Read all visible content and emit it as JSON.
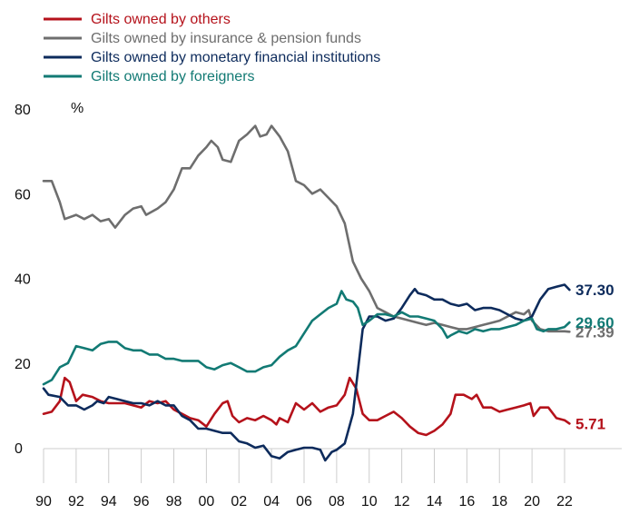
{
  "chart_data": {
    "type": "line",
    "ylabel": "%",
    "ylim": [
      -5,
      80
    ],
    "xlim": [
      1990,
      2022.3
    ],
    "grid": false,
    "legend_placement": "top-left",
    "x_ticks": [
      {
        "value": 1990,
        "label": "90"
      },
      {
        "value": 1992,
        "label": "92"
      },
      {
        "value": 1994,
        "label": "94"
      },
      {
        "value": 1996,
        "label": "96"
      },
      {
        "value": 1998,
        "label": "98"
      },
      {
        "value": 2000,
        "label": "00"
      },
      {
        "value": 2002,
        "label": "02"
      },
      {
        "value": 2004,
        "label": "04"
      },
      {
        "value": 2006,
        "label": "06"
      },
      {
        "value": 2008,
        "label": "08"
      },
      {
        "value": 2010,
        "label": "10"
      },
      {
        "value": 2012,
        "label": "12"
      },
      {
        "value": 2014,
        "label": "14"
      },
      {
        "value": 2016,
        "label": "16"
      },
      {
        "value": 2018,
        "label": "18"
      },
      {
        "value": 2020,
        "label": "20"
      },
      {
        "value": 2022,
        "label": "22"
      }
    ],
    "y_ticks": [
      {
        "value": 0,
        "label": "0"
      },
      {
        "value": 20,
        "label": "20"
      },
      {
        "value": 40,
        "label": "40"
      },
      {
        "value": 60,
        "label": "60"
      },
      {
        "value": 80,
        "label": "80"
      }
    ],
    "series": [
      {
        "name": "Gilts owned by others",
        "color": "#b5121b",
        "end_label": "5.71",
        "points": [
          [
            1990,
            8
          ],
          [
            1990.5,
            8.5
          ],
          [
            1991,
            11
          ],
          [
            1991.3,
            16.5
          ],
          [
            1991.6,
            15.5
          ],
          [
            1992,
            11
          ],
          [
            1992.4,
            12.5
          ],
          [
            1993,
            12
          ],
          [
            1993.5,
            11
          ],
          [
            1994,
            10.5
          ],
          [
            1995,
            10.5
          ],
          [
            1995.5,
            10
          ],
          [
            1996,
            9.5
          ],
          [
            1996.5,
            11
          ],
          [
            1997,
            10.5
          ],
          [
            1997.5,
            11
          ],
          [
            1998,
            9
          ],
          [
            1998.5,
            8
          ],
          [
            1999,
            7
          ],
          [
            1999.5,
            6.5
          ],
          [
            2000,
            5
          ],
          [
            2000.5,
            8
          ],
          [
            2001,
            10.5
          ],
          [
            2001.3,
            11
          ],
          [
            2001.6,
            7.5
          ],
          [
            2002,
            6
          ],
          [
            2002.5,
            7
          ],
          [
            2003,
            6.5
          ],
          [
            2003.5,
            7.5
          ],
          [
            2004,
            6.5
          ],
          [
            2004.3,
            5.5
          ],
          [
            2004.5,
            7
          ],
          [
            2005,
            6
          ],
          [
            2005.5,
            10.5
          ],
          [
            2006,
            9
          ],
          [
            2006.5,
            10.5
          ],
          [
            2007,
            8.5
          ],
          [
            2007.5,
            9.5
          ],
          [
            2008,
            10
          ],
          [
            2008.5,
            12.5
          ],
          [
            2008.8,
            16.5
          ],
          [
            2009.2,
            14
          ],
          [
            2009.6,
            8
          ],
          [
            2010,
            6.5
          ],
          [
            2010.5,
            6.5
          ],
          [
            2011,
            7.5
          ],
          [
            2011.5,
            8.5
          ],
          [
            2012,
            7
          ],
          [
            2012.5,
            5
          ],
          [
            2013,
            3.5
          ],
          [
            2013.5,
            3
          ],
          [
            2014,
            4
          ],
          [
            2014.5,
            5.5
          ],
          [
            2015,
            8
          ],
          [
            2015.3,
            12.5
          ],
          [
            2015.8,
            12.5
          ],
          [
            2016.3,
            11.5
          ],
          [
            2016.6,
            12.5
          ],
          [
            2017,
            9.5
          ],
          [
            2017.5,
            9.5
          ],
          [
            2018,
            8.5
          ],
          [
            2018.5,
            9
          ],
          [
            2019,
            9.5
          ],
          [
            2019.5,
            10
          ],
          [
            2019.9,
            10.5
          ],
          [
            2020.1,
            7.5
          ],
          [
            2020.5,
            9.5
          ],
          [
            2021,
            9.5
          ],
          [
            2021.5,
            7
          ],
          [
            2022,
            6.5
          ],
          [
            2022.3,
            5.71
          ]
        ]
      },
      {
        "name": "Gilts owned by insurance & pension funds",
        "color": "#6e6e6e",
        "end_label": "27.39",
        "points": [
          [
            1990,
            63
          ],
          [
            1990.5,
            63
          ],
          [
            1991,
            58
          ],
          [
            1991.3,
            54
          ],
          [
            1992,
            55
          ],
          [
            1992.5,
            54
          ],
          [
            1993,
            55
          ],
          [
            1993.5,
            53.5
          ],
          [
            1994,
            54
          ],
          [
            1994.4,
            52
          ],
          [
            1995,
            55
          ],
          [
            1995.5,
            56.5
          ],
          [
            1996,
            57
          ],
          [
            1996.3,
            55
          ],
          [
            1997,
            56.5
          ],
          [
            1997.5,
            58
          ],
          [
            1998,
            61
          ],
          [
            1998.5,
            66
          ],
          [
            1999,
            66
          ],
          [
            1999.5,
            69
          ],
          [
            2000,
            71
          ],
          [
            2000.3,
            72.5
          ],
          [
            2000.7,
            71
          ],
          [
            2001,
            68
          ],
          [
            2001.5,
            67.5
          ],
          [
            2002,
            72.5
          ],
          [
            2002.5,
            74
          ],
          [
            2003,
            76
          ],
          [
            2003.3,
            73.5
          ],
          [
            2003.7,
            74
          ],
          [
            2004,
            76
          ],
          [
            2004.5,
            73.5
          ],
          [
            2005,
            70
          ],
          [
            2005.5,
            63
          ],
          [
            2006,
            62
          ],
          [
            2006.5,
            60
          ],
          [
            2007,
            61
          ],
          [
            2007.5,
            59
          ],
          [
            2008,
            57
          ],
          [
            2008.5,
            53
          ],
          [
            2009,
            44
          ],
          [
            2009.5,
            40
          ],
          [
            2010,
            37
          ],
          [
            2010.5,
            33
          ],
          [
            2011,
            32
          ],
          [
            2011.5,
            31
          ],
          [
            2012,
            30.5
          ],
          [
            2013,
            29.5
          ],
          [
            2013.5,
            29
          ],
          [
            2014,
            29.5
          ],
          [
            2014.5,
            29
          ],
          [
            2015,
            28.5
          ],
          [
            2015.5,
            28
          ],
          [
            2016,
            28
          ],
          [
            2016.5,
            28.5
          ],
          [
            2017,
            29
          ],
          [
            2017.5,
            29.5
          ],
          [
            2018,
            30
          ],
          [
            2018.5,
            31
          ],
          [
            2019,
            32
          ],
          [
            2019.5,
            31.5
          ],
          [
            2019.8,
            32.5
          ],
          [
            2020,
            30
          ],
          [
            2020.5,
            28
          ],
          [
            2021,
            27.5
          ],
          [
            2021.5,
            27.5
          ],
          [
            2022,
            27.5
          ],
          [
            2022.3,
            27.39
          ]
        ]
      },
      {
        "name": "Gilts owned by monetary financial institutions",
        "color": "#0d2b5c",
        "end_label": "37.30",
        "points": [
          [
            1990,
            14
          ],
          [
            1990.3,
            12.5
          ],
          [
            1991,
            12
          ],
          [
            1991.5,
            10
          ],
          [
            1992,
            10
          ],
          [
            1992.5,
            9
          ],
          [
            1993,
            10
          ],
          [
            1993.3,
            11
          ],
          [
            1993.7,
            10.5
          ],
          [
            1994,
            12
          ],
          [
            1994.5,
            11.5
          ],
          [
            1995,
            11
          ],
          [
            1995.5,
            10.5
          ],
          [
            1996,
            10.5
          ],
          [
            1996.5,
            10
          ],
          [
            1997,
            11
          ],
          [
            1997.5,
            10
          ],
          [
            1998,
            10
          ],
          [
            1998.5,
            7.5
          ],
          [
            1999,
            6.5
          ],
          [
            1999.5,
            4.5
          ],
          [
            2000,
            4.5
          ],
          [
            2000.5,
            4
          ],
          [
            2001,
            3.5
          ],
          [
            2001.5,
            3.5
          ],
          [
            2002,
            1.5
          ],
          [
            2002.5,
            1
          ],
          [
            2003,
            0
          ],
          [
            2003.5,
            0.5
          ],
          [
            2004,
            -2
          ],
          [
            2004.5,
            -2.5
          ],
          [
            2005,
            -1
          ],
          [
            2005.5,
            -0.5
          ],
          [
            2006,
            0
          ],
          [
            2006.5,
            0
          ],
          [
            2007,
            -0.5
          ],
          [
            2007.3,
            -3
          ],
          [
            2007.7,
            -1
          ],
          [
            2008,
            -0.5
          ],
          [
            2008.5,
            1
          ],
          [
            2009,
            8
          ],
          [
            2009.3,
            18
          ],
          [
            2009.6,
            28
          ],
          [
            2010,
            31
          ],
          [
            2010.5,
            31
          ],
          [
            2011,
            30
          ],
          [
            2011.5,
            30.5
          ],
          [
            2012,
            33
          ],
          [
            2012.5,
            36
          ],
          [
            2012.8,
            37.5
          ],
          [
            2013,
            36.5
          ],
          [
            2013.5,
            36
          ],
          [
            2014,
            35
          ],
          [
            2014.5,
            35
          ],
          [
            2015,
            34
          ],
          [
            2015.5,
            33.5
          ],
          [
            2016,
            34
          ],
          [
            2016.5,
            32.5
          ],
          [
            2017,
            33
          ],
          [
            2017.5,
            33
          ],
          [
            2018,
            32.5
          ],
          [
            2018.5,
            31.5
          ],
          [
            2019,
            30.5
          ],
          [
            2019.5,
            30
          ],
          [
            2020,
            31
          ],
          [
            2020.5,
            35
          ],
          [
            2021,
            37.5
          ],
          [
            2021.5,
            38
          ],
          [
            2022,
            38.5
          ],
          [
            2022.3,
            37.3
          ]
        ]
      },
      {
        "name": "Gilts owned by foreigners",
        "color": "#127a74",
        "end_label": "29.60",
        "points": [
          [
            1990,
            15
          ],
          [
            1990.5,
            16
          ],
          [
            1991,
            19
          ],
          [
            1991.5,
            20
          ],
          [
            1992,
            24
          ],
          [
            1992.5,
            23.5
          ],
          [
            1993,
            23
          ],
          [
            1993.5,
            24.5
          ],
          [
            1994,
            25
          ],
          [
            1994.5,
            25
          ],
          [
            1995,
            23.5
          ],
          [
            1995.5,
            23
          ],
          [
            1996,
            23
          ],
          [
            1996.5,
            22
          ],
          [
            1997,
            22
          ],
          [
            1997.5,
            21
          ],
          [
            1998,
            21
          ],
          [
            1998.5,
            20.5
          ],
          [
            1999,
            20.5
          ],
          [
            1999.5,
            20.5
          ],
          [
            2000,
            19
          ],
          [
            2000.5,
            18.5
          ],
          [
            2001,
            19.5
          ],
          [
            2001.5,
            20
          ],
          [
            2002,
            19
          ],
          [
            2002.5,
            18
          ],
          [
            2003,
            18
          ],
          [
            2003.5,
            19
          ],
          [
            2004,
            19.5
          ],
          [
            2004.5,
            21.5
          ],
          [
            2005,
            23
          ],
          [
            2005.5,
            24
          ],
          [
            2006,
            27
          ],
          [
            2006.5,
            30
          ],
          [
            2007,
            31.5
          ],
          [
            2007.5,
            33
          ],
          [
            2008,
            34
          ],
          [
            2008.3,
            37
          ],
          [
            2008.6,
            35
          ],
          [
            2009,
            34.5
          ],
          [
            2009.3,
            33
          ],
          [
            2009.6,
            29
          ],
          [
            2010,
            30
          ],
          [
            2010.5,
            31.5
          ],
          [
            2011,
            31.5
          ],
          [
            2011.5,
            31
          ],
          [
            2012,
            32
          ],
          [
            2012.5,
            31
          ],
          [
            2013,
            31
          ],
          [
            2013.5,
            30.5
          ],
          [
            2014,
            30
          ],
          [
            2014.5,
            28
          ],
          [
            2014.8,
            26
          ],
          [
            2015,
            26.5
          ],
          [
            2015.5,
            27.5
          ],
          [
            2016,
            27
          ],
          [
            2016.5,
            28
          ],
          [
            2017,
            27.5
          ],
          [
            2017.5,
            28
          ],
          [
            2018,
            28
          ],
          [
            2018.5,
            28.5
          ],
          [
            2019,
            29
          ],
          [
            2019.5,
            30
          ],
          [
            2020,
            30.5
          ],
          [
            2020.3,
            28
          ],
          [
            2020.7,
            27.5
          ],
          [
            2021,
            28
          ],
          [
            2021.5,
            28
          ],
          [
            2022,
            28.5
          ],
          [
            2022.3,
            29.6
          ]
        ]
      }
    ]
  }
}
